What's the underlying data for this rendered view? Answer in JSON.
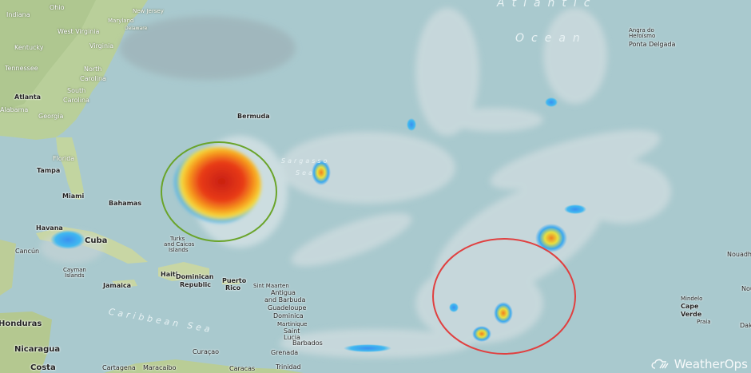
{
  "map": {
    "water_labels": {
      "atlantic": "Atlantic",
      "ocean": "Ocean",
      "caribbean": "Caribbean Sea",
      "sargasso_1": "Sargasso",
      "sargasso_2": "Sea"
    },
    "states": [
      "Ohio",
      "Indiana",
      "New Jersey",
      "Maryland",
      "Delaware",
      "West Virginia",
      "Virginia",
      "Kentucky",
      "Tennessee",
      "North",
      "Carolina",
      "South",
      "Carolina",
      "Alabama",
      "Georgia",
      "Florida"
    ],
    "cities": [
      "Atlanta",
      "Tampa",
      "Miami",
      "Havana",
      "Cancún",
      "Bermuda",
      "Angra do",
      "Heroísmo",
      "Ponta Delgada",
      "Mindelo",
      "Praia",
      "Caracas",
      "Cartagena",
      "Maracaibo"
    ],
    "countries": [
      "Bahamas",
      "Cuba",
      "Cayman",
      "Islands",
      "Turks",
      "and Caicos",
      "Islands",
      "Jamaica",
      "Haiti",
      "Dominican",
      "Republic",
      "Puerto",
      "Rico",
      "Sint Maarten",
      "Antigua",
      "and Barbuda",
      "Guadeloupe",
      "Dominica",
      "Martinique",
      "Saint",
      "Lucia",
      "Barbados",
      "Grenada",
      "Curaçao",
      "Trinidad",
      "Honduras",
      "Nicaragua",
      "Costa",
      "Cape",
      "Verde",
      "Nouadhi",
      "Nou",
      "Dak"
    ],
    "circles": [
      {
        "name": "storm-west",
        "color": "#6aa42a"
      },
      {
        "name": "storm-east",
        "color": "#e04040"
      }
    ],
    "logo": {
      "text": "WeatherOps",
      "icon": "cloud-logo-icon"
    }
  }
}
